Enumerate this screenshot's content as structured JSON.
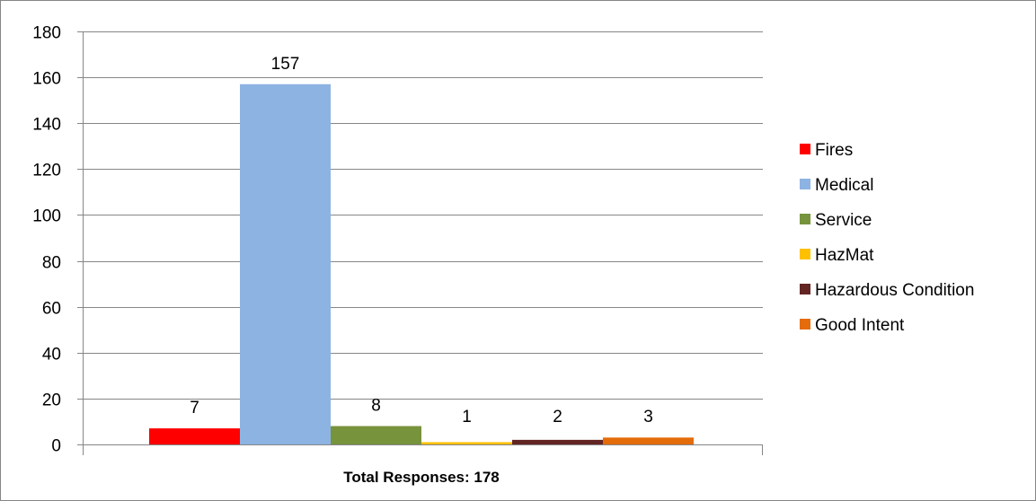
{
  "chart_data": {
    "type": "bar",
    "categories": [
      "Total Responses: 178"
    ],
    "xlabel": "Total Responses: 178",
    "ylabel": "",
    "ylim": [
      0,
      180
    ],
    "yticks": [
      0,
      20,
      40,
      60,
      80,
      100,
      120,
      140,
      160,
      180
    ],
    "grid": true,
    "legend_position": "right",
    "series": [
      {
        "name": "Fires",
        "values": [
          7
        ],
        "color": "#ff0000"
      },
      {
        "name": "Medical",
        "values": [
          157
        ],
        "color": "#8db3e2"
      },
      {
        "name": "Service",
        "values": [
          8
        ],
        "color": "#77933c"
      },
      {
        "name": "HazMat",
        "values": [
          1
        ],
        "color": "#ffc000"
      },
      {
        "name": "Hazardous Condition",
        "values": [
          2
        ],
        "color": "#632523"
      },
      {
        "name": "Good Intent",
        "values": [
          3
        ],
        "color": "#e46c0a"
      }
    ]
  }
}
